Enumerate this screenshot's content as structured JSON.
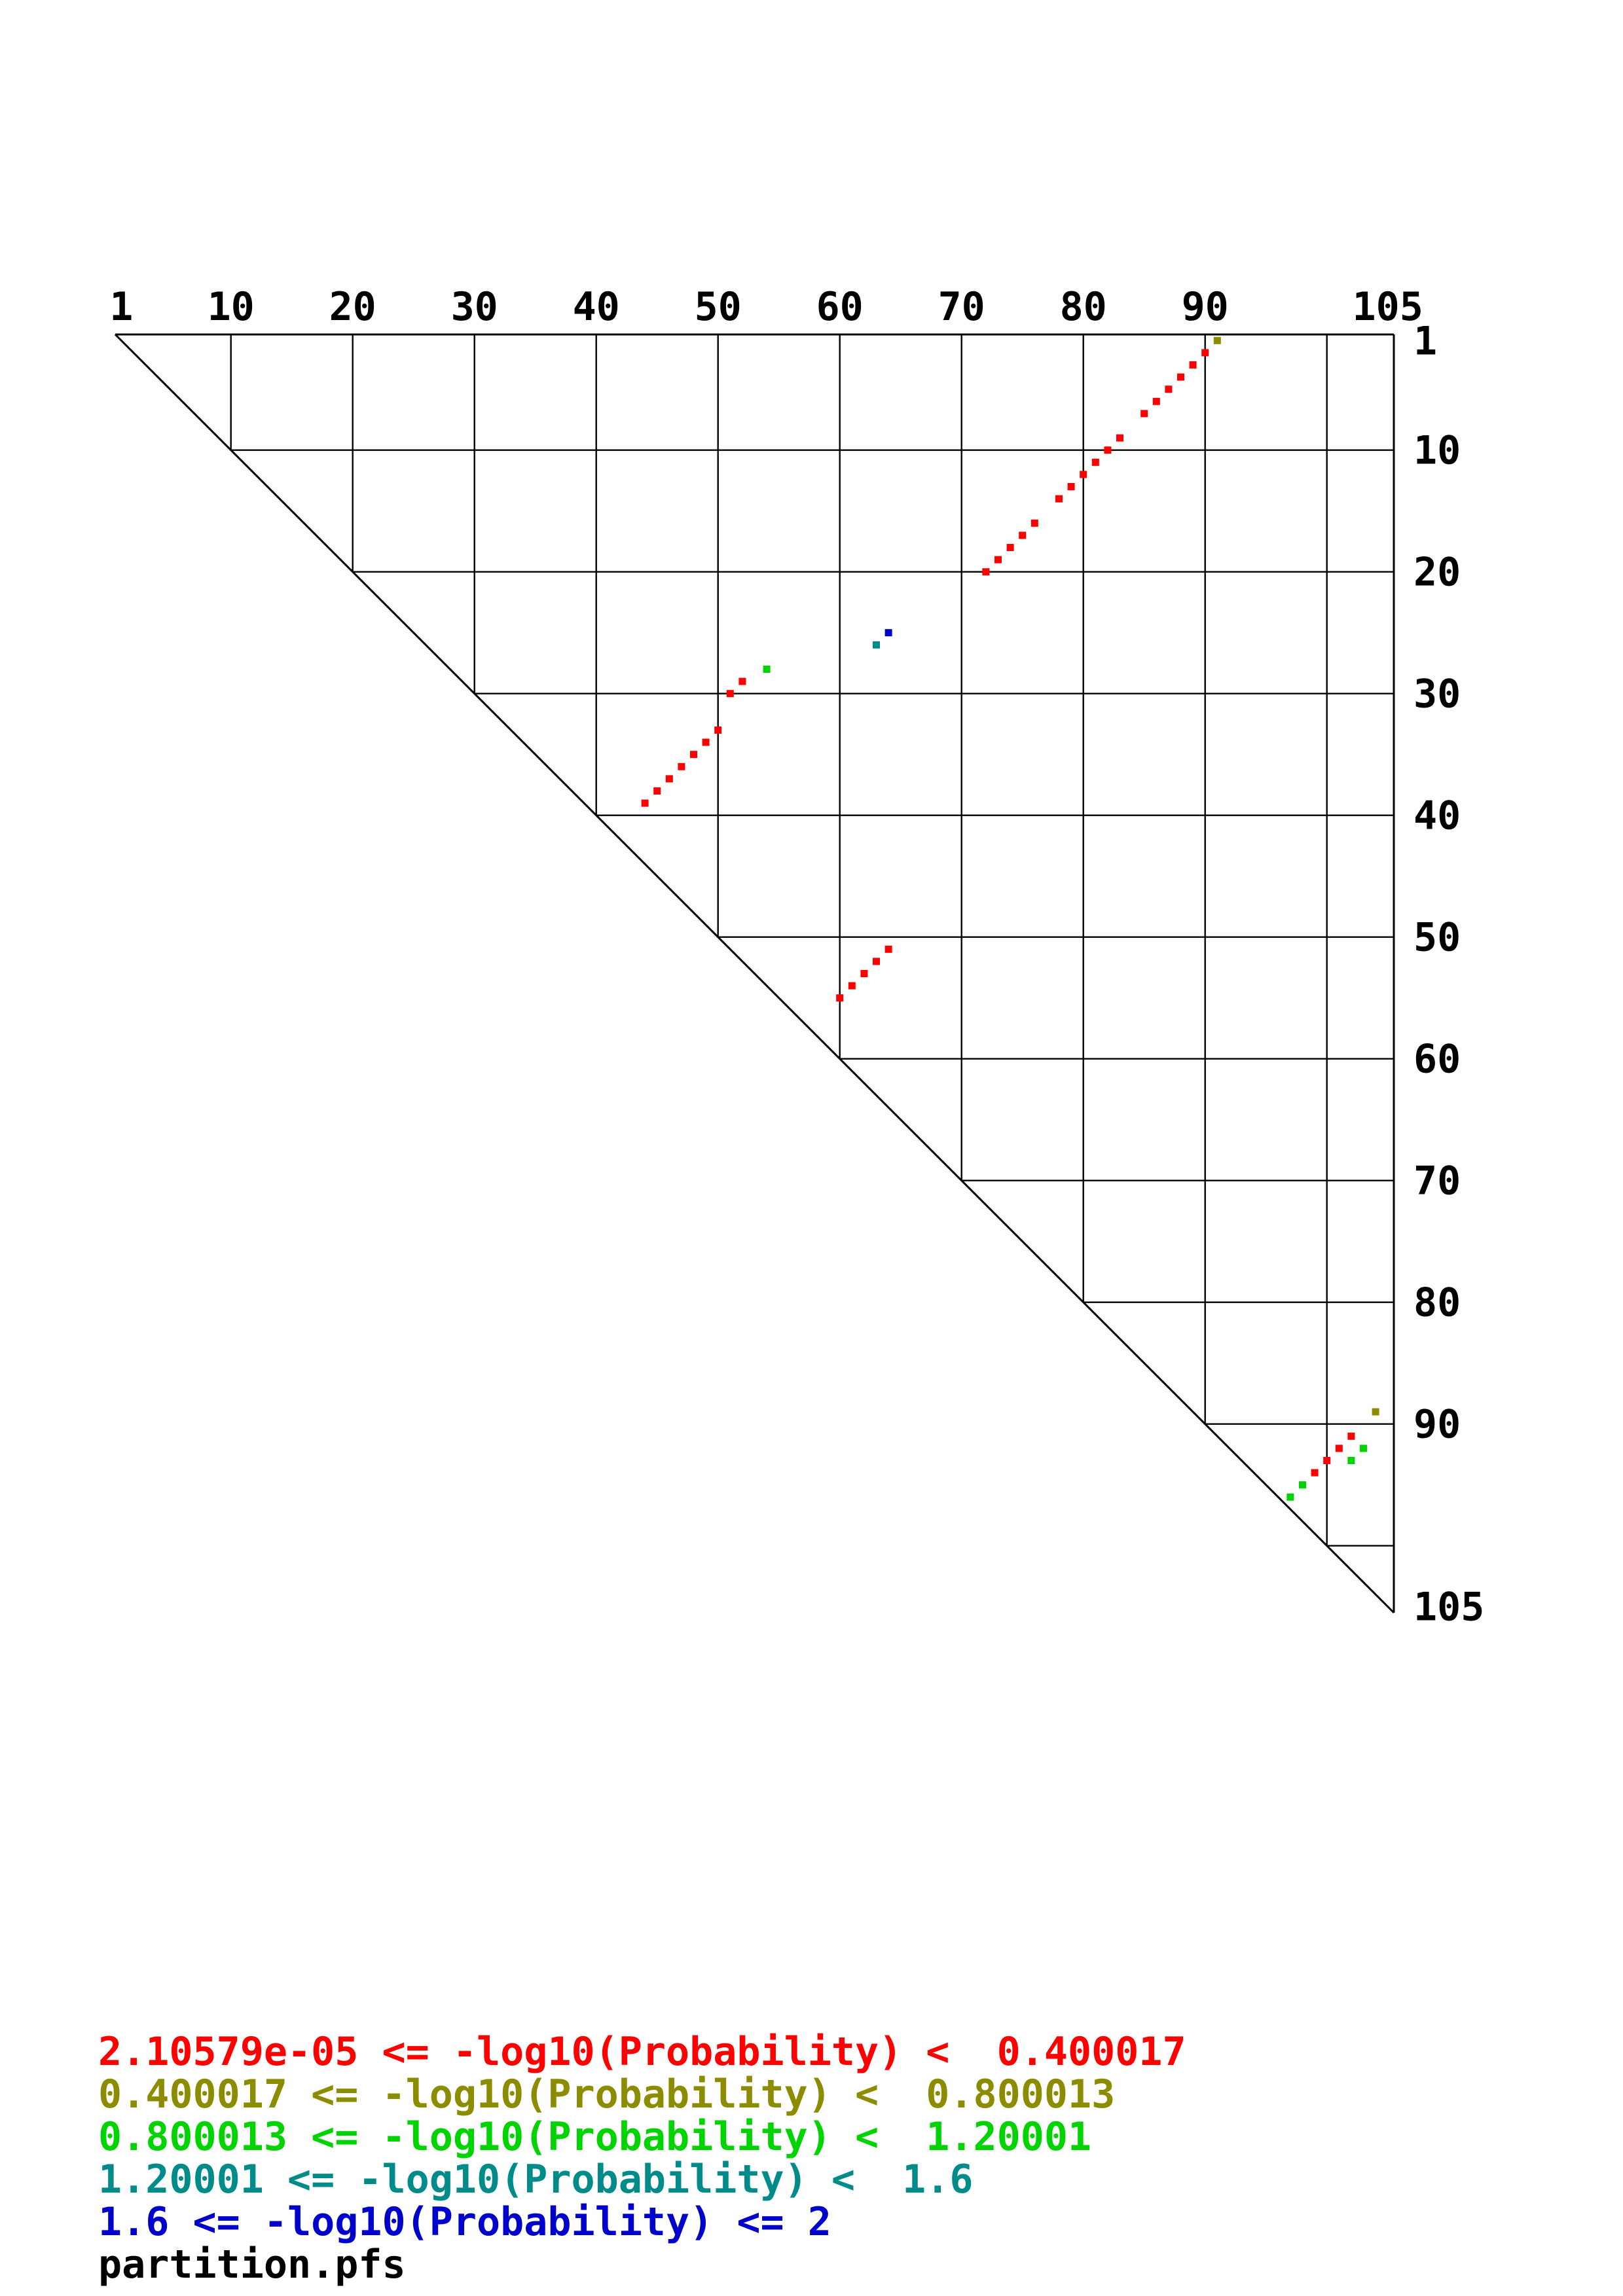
{
  "chart_data": {
    "type": "scatter",
    "subtype": "base-pair-probability-dot-plot",
    "title": "",
    "xlabel": "",
    "ylabel": "",
    "axis_range": [
      1,
      105
    ],
    "x_ticks": [
      1,
      10,
      20,
      30,
      40,
      50,
      60,
      70,
      80,
      90,
      105
    ],
    "y_ticks": [
      1,
      10,
      20,
      30,
      40,
      50,
      60,
      70,
      80,
      90,
      105
    ],
    "grid_positions": [
      10,
      20,
      30,
      40,
      50,
      60,
      70,
      80,
      90,
      100
    ],
    "grid": true,
    "legend_position": "bottom-left",
    "series": [
      {
        "name": "bin-1-red",
        "color": "#ff0000",
        "range_label": "2.10579e-05 <= -log10(Probability) <  0.400017",
        "points": [
          [
            2,
            90
          ],
          [
            3,
            89
          ],
          [
            4,
            88
          ],
          [
            5,
            87
          ],
          [
            6,
            86
          ],
          [
            7,
            85
          ],
          [
            9,
            83
          ],
          [
            10,
            82
          ],
          [
            11,
            81
          ],
          [
            12,
            80
          ],
          [
            13,
            79
          ],
          [
            14,
            78
          ],
          [
            16,
            76
          ],
          [
            17,
            75
          ],
          [
            18,
            74
          ],
          [
            19,
            73
          ],
          [
            20,
            72
          ],
          [
            29,
            52
          ],
          [
            30,
            51
          ],
          [
            33,
            50
          ],
          [
            34,
            49
          ],
          [
            35,
            48
          ],
          [
            36,
            47
          ],
          [
            37,
            46
          ],
          [
            38,
            45
          ],
          [
            39,
            44
          ],
          [
            51,
            64
          ],
          [
            52,
            63
          ],
          [
            53,
            62
          ],
          [
            54,
            61
          ],
          [
            55,
            60
          ],
          [
            91,
            102
          ],
          [
            92,
            101
          ],
          [
            93,
            100
          ],
          [
            94,
            99
          ]
        ]
      },
      {
        "name": "bin-2-olive",
        "color": "#8c8c00",
        "range_label": "0.400017 <= -log10(Probability) <  0.800013",
        "points": [
          [
            1,
            91
          ],
          [
            89,
            104
          ]
        ]
      },
      {
        "name": "bin-3-green",
        "color": "#00d400",
        "range_label": "0.800013 <= -log10(Probability) <  1.20001",
        "points": [
          [
            28,
            54
          ],
          [
            92,
            103
          ],
          [
            93,
            102
          ],
          [
            95,
            98
          ],
          [
            96,
            97
          ]
        ]
      },
      {
        "name": "bin-4-teal",
        "color": "#008b8b",
        "range_label": "1.20001 <= -log10(Probability) <  1.6",
        "points": [
          [
            26,
            63
          ]
        ]
      },
      {
        "name": "bin-5-blue",
        "color": "#0000cc",
        "range_label": "1.6 <= -log10(Probability) <= 2",
        "points": [
          [
            25,
            64
          ]
        ]
      }
    ]
  },
  "legend": {
    "entries": [
      {
        "color": "#ff0000",
        "text": "2.10579e-05 <= -log10(Probability) <  0.400017"
      },
      {
        "color": "#8c8c00",
        "text": "0.400017 <= -log10(Probability) <  0.800013"
      },
      {
        "color": "#00d400",
        "text": "0.800013 <= -log10(Probability) <  1.20001"
      },
      {
        "color": "#008b8b",
        "text": "1.20001 <= -log10(Probability) <  1.6"
      },
      {
        "color": "#0000cc",
        "text": "1.6 <= -log10(Probability) <= 2"
      },
      {
        "color": "#000000",
        "text": "partition.pfs"
      }
    ]
  },
  "footer_filename": "partition.pfs"
}
